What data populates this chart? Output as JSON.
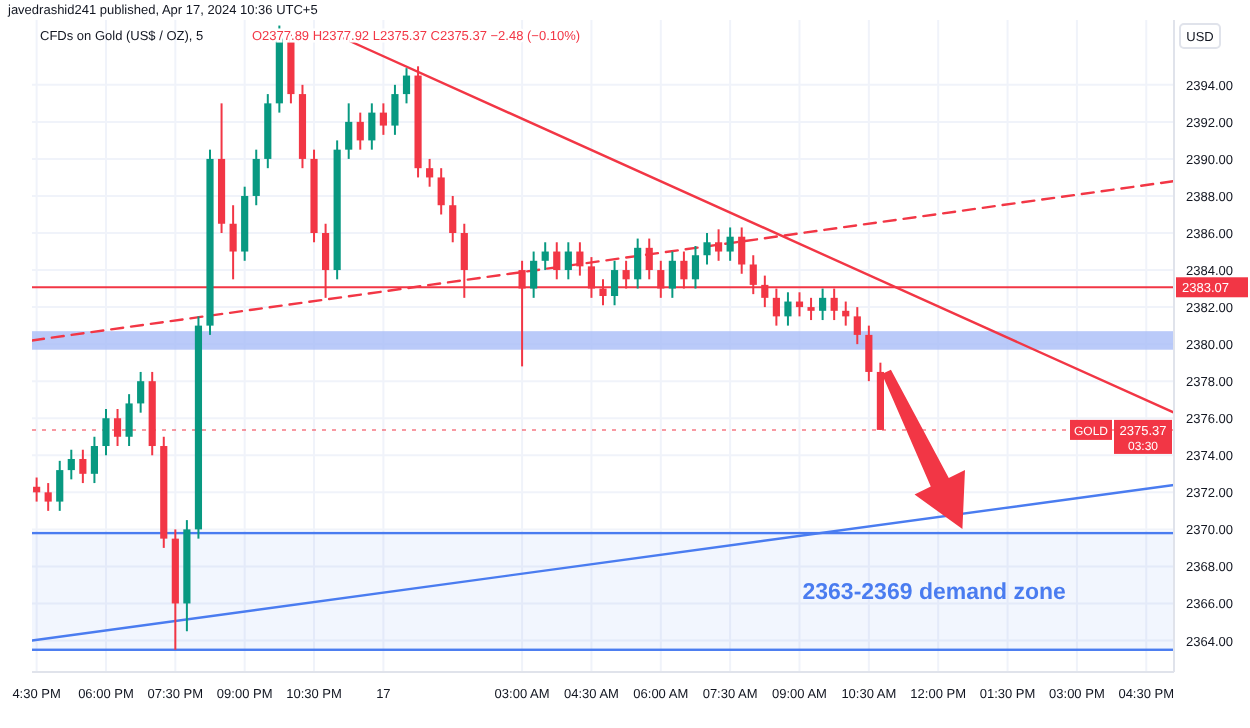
{
  "chart_data": {
    "type": "candlestick",
    "title": "CFDs on Gold (US$ / OZ), 5",
    "subtitle": "javedrashid241 published, Apr 17, 2024 10:36 UTC+5",
    "ylabel": "USD",
    "annotations": [
      "O2377.89 H2377.92 L2375.37 C2375.37 −2.48 (−0.10%)",
      "GOLD",
      "03:30"
    ],
    "x": [
      "2024-04-16T16:30",
      "2024-04-16T16:45",
      "2024-04-16T17:00",
      "2024-04-16T17:15",
      "2024-04-16T17:30",
      "2024-04-16T17:45",
      "2024-04-16T18:00",
      "2024-04-16T18:15",
      "2024-04-16T18:30",
      "2024-04-16T18:45",
      "2024-04-16T19:00",
      "2024-04-16T19:15",
      "2024-04-16T19:30",
      "2024-04-16T19:45",
      "2024-04-16T20:00",
      "2024-04-16T20:15",
      "2024-04-16T20:30",
      "2024-04-16T20:45",
      "2024-04-16T21:00",
      "2024-04-16T21:15",
      "2024-04-16T21:30",
      "2024-04-16T21:45",
      "2024-04-16T22:00",
      "2024-04-16T22:15",
      "2024-04-16T22:30",
      "2024-04-16T22:45",
      "2024-04-16T23:00",
      "2024-04-16T23:15",
      "2024-04-16T23:30",
      "2024-04-16T23:45",
      "2024-04-17T00:00",
      "2024-04-17T00:15",
      "2024-04-17T00:30",
      "2024-04-17T00:45",
      "2024-04-17T01:00",
      "2024-04-17T01:15",
      "2024-04-17T01:30",
      "2024-04-17T01:45",
      "2024-04-17T03:00",
      "2024-04-17T03:15",
      "2024-04-17T03:30",
      "2024-04-17T03:45",
      "2024-04-17T04:00",
      "2024-04-17T04:15",
      "2024-04-17T04:30",
      "2024-04-17T04:45",
      "2024-04-17T05:00",
      "2024-04-17T05:15",
      "2024-04-17T05:30",
      "2024-04-17T05:45",
      "2024-04-17T06:00",
      "2024-04-17T06:15",
      "2024-04-17T06:30",
      "2024-04-17T06:45",
      "2024-04-17T07:00",
      "2024-04-17T07:15",
      "2024-04-17T07:30",
      "2024-04-17T07:45",
      "2024-04-17T08:00",
      "2024-04-17T08:15",
      "2024-04-17T08:30",
      "2024-04-17T08:45",
      "2024-04-17T09:00",
      "2024-04-17T09:15",
      "2024-04-17T09:30",
      "2024-04-17T09:45",
      "2024-04-17T10:00",
      "2024-04-17T10:15",
      "2024-04-17T10:30",
      "2024-04-17T10:45"
    ],
    "ohlc": [
      [
        2372.3,
        2372.8,
        2371.5,
        2372.0
      ],
      [
        2372.0,
        2372.5,
        2371.0,
        2371.5
      ],
      [
        2371.5,
        2373.7,
        2371.0,
        2373.2
      ],
      [
        2373.2,
        2374.3,
        2372.7,
        2373.8
      ],
      [
        2373.8,
        2374.3,
        2372.5,
        2373.0
      ],
      [
        2373.0,
        2375.0,
        2372.5,
        2374.5
      ],
      [
        2374.5,
        2376.5,
        2374.0,
        2376.0
      ],
      [
        2376.0,
        2376.5,
        2374.5,
        2375.0
      ],
      [
        2375.0,
        2377.3,
        2374.5,
        2376.8
      ],
      [
        2376.8,
        2378.5,
        2376.3,
        2378.0
      ],
      [
        2378.0,
        2378.5,
        2374.0,
        2374.5
      ],
      [
        2374.5,
        2375.0,
        2369.0,
        2369.5
      ],
      [
        2369.5,
        2370.0,
        2363.5,
        2366.0
      ],
      [
        2366.0,
        2370.5,
        2364.5,
        2370.0
      ],
      [
        2370.0,
        2381.5,
        2369.5,
        2381.0
      ],
      [
        2381.0,
        2390.5,
        2380.5,
        2390.0
      ],
      [
        2390.0,
        2393.0,
        2386.0,
        2386.5
      ],
      [
        2386.5,
        2387.5,
        2383.5,
        2385.0
      ],
      [
        2385.0,
        2388.5,
        2384.5,
        2388.0
      ],
      [
        2388.0,
        2390.5,
        2387.5,
        2390.0
      ],
      [
        2390.0,
        2393.5,
        2389.5,
        2393.0
      ],
      [
        2393.0,
        2397.2,
        2392.5,
        2396.5
      ],
      [
        2396.5,
        2397.0,
        2393.0,
        2393.5
      ],
      [
        2393.5,
        2394.0,
        2389.5,
        2390.0
      ],
      [
        2390.0,
        2390.5,
        2385.5,
        2386.0
      ],
      [
        2386.0,
        2386.5,
        2382.5,
        2384.0
      ],
      [
        2384.0,
        2391.0,
        2383.5,
        2390.5
      ],
      [
        2390.5,
        2393.0,
        2390.0,
        2392.0
      ],
      [
        2392.0,
        2392.5,
        2390.5,
        2391.0
      ],
      [
        2391.0,
        2393.0,
        2390.5,
        2392.5
      ],
      [
        2392.5,
        2393.0,
        2391.3,
        2391.8
      ],
      [
        2391.8,
        2394.0,
        2391.3,
        2393.5
      ],
      [
        2393.5,
        2394.9,
        2393.0,
        2394.5
      ],
      [
        2394.5,
        2395.0,
        2389.0,
        2389.5
      ],
      [
        2389.5,
        2390.0,
        2388.5,
        2389.0
      ],
      [
        2389.0,
        2389.5,
        2387.0,
        2387.5
      ],
      [
        2387.5,
        2388.0,
        2385.5,
        2386.0
      ],
      [
        2386.0,
        2386.5,
        2382.5,
        2384.0
      ],
      [
        2384.0,
        2384.5,
        2378.8,
        2383.0
      ],
      [
        2383.0,
        2385.0,
        2382.5,
        2384.5
      ],
      [
        2384.5,
        2385.5,
        2384.0,
        2385.0
      ],
      [
        2385.0,
        2385.5,
        2383.5,
        2384.0
      ],
      [
        2384.0,
        2385.5,
        2383.5,
        2385.0
      ],
      [
        2385.0,
        2385.5,
        2383.7,
        2384.2
      ],
      [
        2384.2,
        2384.7,
        2382.5,
        2383.0
      ],
      [
        2383.0,
        2383.5,
        2382.1,
        2382.6
      ],
      [
        2382.6,
        2384.5,
        2382.1,
        2384.0
      ],
      [
        2384.0,
        2384.5,
        2383.0,
        2383.5
      ],
      [
        2383.5,
        2385.7,
        2383.0,
        2385.2
      ],
      [
        2385.2,
        2385.7,
        2383.5,
        2384.0
      ],
      [
        2384.0,
        2384.5,
        2382.5,
        2383.0
      ],
      [
        2383.0,
        2385.0,
        2382.5,
        2384.5
      ],
      [
        2384.5,
        2385.0,
        2383.0,
        2383.5
      ],
      [
        2383.5,
        2385.3,
        2383.0,
        2384.8
      ],
      [
        2384.8,
        2386.0,
        2384.3,
        2385.5
      ],
      [
        2385.5,
        2386.2,
        2384.5,
        2385.0
      ],
      [
        2385.0,
        2386.3,
        2384.5,
        2385.8
      ],
      [
        2385.8,
        2386.3,
        2383.8,
        2384.3
      ],
      [
        2384.3,
        2384.8,
        2382.7,
        2383.2
      ],
      [
        2383.2,
        2383.7,
        2382.0,
        2382.5
      ],
      [
        2382.5,
        2383.0,
        2381.0,
        2381.5
      ],
      [
        2381.5,
        2382.8,
        2381.0,
        2382.3
      ],
      [
        2382.3,
        2382.8,
        2381.5,
        2382.0
      ],
      [
        2382.0,
        2382.5,
        2381.3,
        2381.8
      ],
      [
        2381.8,
        2383.0,
        2381.3,
        2382.5
      ],
      [
        2382.5,
        2383.0,
        2381.3,
        2381.8
      ],
      [
        2381.8,
        2382.3,
        2381.0,
        2381.5
      ],
      [
        2381.5,
        2382.0,
        2380.0,
        2380.5
      ],
      [
        2380.5,
        2381.0,
        2378.0,
        2378.5
      ],
      [
        2378.5,
        2379.0,
        2375.37,
        2375.37
      ]
    ],
    "colors": [
      "#f23645",
      "#f23645",
      "#089981",
      "#089981",
      "#f23645",
      "#089981",
      "#089981",
      "#f23645",
      "#089981",
      "#089981",
      "#f23645",
      "#f23645",
      "#f23645",
      "#089981",
      "#089981",
      "#089981",
      "#f23645",
      "#f23645",
      "#089981",
      "#089981",
      "#089981",
      "#089981",
      "#f23645",
      "#f23645",
      "#f23645",
      "#f23645",
      "#089981",
      "#089981",
      "#f23645",
      "#089981",
      "#f23645",
      "#089981",
      "#089981",
      "#f23645",
      "#f23645",
      "#f23645",
      "#f23645",
      "#f23645",
      "#f23645",
      "#089981",
      "#089981",
      "#f23645",
      "#089981",
      "#f23645",
      "#f23645",
      "#f23645",
      "#089981",
      "#f23645",
      "#089981",
      "#f23645",
      "#f23645",
      "#089981",
      "#f23645",
      "#089981",
      "#089981",
      "#f23645",
      "#089981",
      "#f23645",
      "#f23645",
      "#f23645",
      "#f23645",
      "#089981",
      "#f23645",
      "#f23645",
      "#089981",
      "#f23645",
      "#f23645",
      "#f23645",
      "#f23645",
      "#f23645"
    ],
    "series": [
      {
        "type": "line",
        "x": [
          "2024-04-16T23:09",
          "2024-04-17T17:06"
        ],
        "values": [
          2396.5,
          2376.3
        ],
        "color": "#f23645",
        "line_style": "solid"
      },
      {
        "type": "line",
        "x": [
          "2024-04-16T16:24",
          "2024-04-17T17:06"
        ],
        "values": [
          2380.2,
          2388.8
        ],
        "color": "#f23645",
        "line_style": "dashed"
      },
      {
        "type": "line",
        "x": [
          "2024-04-16T16:24",
          "2024-04-17T17:06"
        ],
        "values": [
          2364.0,
          2372.4
        ],
        "color": "#4a7cf0",
        "line_style": "solid"
      }
    ],
    "bands": [
      {
        "axis": "y",
        "from": 2379.7,
        "to": 2380.7,
        "color": "#a9bdf7"
      },
      {
        "axis": "y",
        "from": 2363.5,
        "to": 2369.8,
        "color": "#4a7cf0",
        "label": "2363-2369 demand zone"
      }
    ],
    "ref_lines": [
      {
        "axis": "y",
        "value": 2383.07,
        "label": "2383.07",
        "color": "#f23645",
        "line_style": "solid"
      },
      {
        "axis": "y",
        "value": 2375.37,
        "label": "2375.37",
        "color": "#f23645",
        "line_style": "dotted"
      }
    ],
    "xlim": [
      "2024-04-16T16:24",
      "2024-04-17T17:06"
    ],
    "xticks": [
      {
        "value": "2024-04-16T16:30",
        "label": "4:30 PM"
      },
      {
        "value": "2024-04-16T18:00",
        "label": "06:00 PM"
      },
      {
        "value": "2024-04-16T19:30",
        "label": "07:30 PM"
      },
      {
        "value": "2024-04-16T21:00",
        "label": "09:00 PM"
      },
      {
        "value": "2024-04-16T22:30",
        "label": "10:30 PM"
      },
      {
        "value": "2024-04-17T00:00",
        "label": "17"
      },
      {
        "value": "2024-04-17T03:00",
        "label": "03:00 AM"
      },
      {
        "value": "2024-04-17T04:30",
        "label": "04:30 AM"
      },
      {
        "value": "2024-04-17T06:00",
        "label": "06:00 AM"
      },
      {
        "value": "2024-04-17T07:30",
        "label": "07:30 AM"
      },
      {
        "value": "2024-04-17T09:00",
        "label": "09:00 AM"
      },
      {
        "value": "2024-04-17T10:30",
        "label": "10:30 AM"
      },
      {
        "value": "2024-04-17T12:00",
        "label": "12:00 PM"
      },
      {
        "value": "2024-04-17T13:30",
        "label": "01:30 PM"
      },
      {
        "value": "2024-04-17T15:00",
        "label": "03:00 PM"
      },
      {
        "value": "2024-04-17T16:30",
        "label": "04:30 PM"
      }
    ],
    "ylim": [
      2362.3,
      2397.5
    ],
    "yticks": [
      {
        "value": 2364,
        "label": "2364.00"
      },
      {
        "value": 2366,
        "label": "2366.00"
      },
      {
        "value": 2368,
        "label": "2368.00"
      },
      {
        "value": 2370,
        "label": "2370.00"
      },
      {
        "value": 2372,
        "label": "2372.00"
      },
      {
        "value": 2374,
        "label": "2374.00"
      },
      {
        "value": 2376,
        "label": "2376.00"
      },
      {
        "value": 2378,
        "label": "2378.00"
      },
      {
        "value": 2380,
        "label": "2380.00"
      },
      {
        "value": 2382,
        "label": "2382.00"
      },
      {
        "value": 2384,
        "label": "2384.00"
      },
      {
        "value": 2386,
        "label": "2386.00"
      },
      {
        "value": 2388,
        "label": "2388.00"
      },
      {
        "value": 2390,
        "label": "2390.00"
      },
      {
        "value": 2392,
        "label": "2392.00"
      },
      {
        "value": 2394,
        "label": "2394.00"
      }
    ],
    "grid": true
  }
}
